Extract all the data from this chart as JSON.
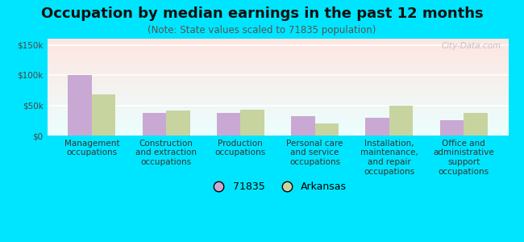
{
  "title": "Occupation by median earnings in the past 12 months",
  "subtitle": "(Note: State values scaled to 71835 population)",
  "categories": [
    "Management\noccupations",
    "Construction\nand extraction\noccupations",
    "Production\noccupations",
    "Personal care\nand service\noccupations",
    "Installation,\nmaintenance,\nand repair\noccupations",
    "Office and\nadministrative\nsupport\noccupations"
  ],
  "values_71835": [
    100000,
    37000,
    37000,
    32000,
    30000,
    26000
  ],
  "values_arkansas": [
    68000,
    42000,
    43000,
    20000,
    50000,
    37000
  ],
  "color_71835": "#c9a8d4",
  "color_arkansas": "#c8d4a0",
  "background_color": "#00e5ff",
  "ylim": [
    0,
    160000
  ],
  "yticks": [
    0,
    50000,
    100000,
    150000
  ],
  "ytick_labels": [
    "$0",
    "$50k",
    "$100k",
    "$150k"
  ],
  "bar_width": 0.32,
  "legend_label_71835": "71835",
  "legend_label_arkansas": "Arkansas",
  "watermark": "City-Data.com",
  "title_fontsize": 13,
  "subtitle_fontsize": 8.5,
  "tick_fontsize": 7.5,
  "legend_fontsize": 9
}
